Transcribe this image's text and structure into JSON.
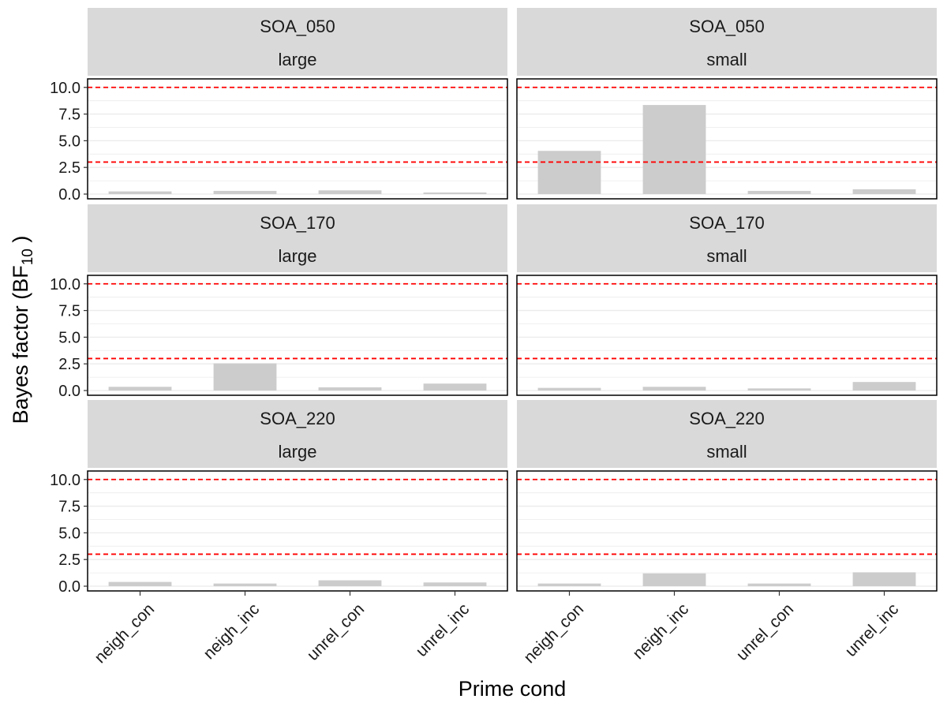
{
  "chart_data": {
    "type": "bar",
    "facet_rows": [
      "SOA_050",
      "SOA_170",
      "SOA_220"
    ],
    "facet_cols": [
      "large",
      "small"
    ],
    "categories": [
      "neigh_con",
      "neigh_inc",
      "unrel_con",
      "unrel_inc"
    ],
    "xlabel": "Prime cond",
    "ylabel_main": "Bayes factor (BF",
    "ylabel_sub": "10",
    "ylabel_end": " )",
    "ylim": [
      0,
      10.5
    ],
    "yticks": [
      "0.0",
      "2.5",
      "5.0",
      "7.5",
      "10.0"
    ],
    "ytick_values": [
      0,
      2.5,
      5,
      7.5,
      10
    ],
    "reference_lines": [
      3,
      10
    ],
    "colors": {
      "bar": "#cccccc",
      "reference": "#ff0000",
      "strip": "#d9d9d9",
      "grid": "#ebebeb"
    },
    "panels": [
      {
        "row": "SOA_050",
        "col": "large",
        "values": [
          0.25,
          0.3,
          0.35,
          0.15
        ]
      },
      {
        "row": "SOA_050",
        "col": "small",
        "values": [
          4.05,
          8.35,
          0.3,
          0.45
        ]
      },
      {
        "row": "SOA_170",
        "col": "large",
        "values": [
          0.35,
          2.55,
          0.3,
          0.65
        ]
      },
      {
        "row": "SOA_170",
        "col": "small",
        "values": [
          0.25,
          0.35,
          0.2,
          0.8
        ]
      },
      {
        "row": "SOA_220",
        "col": "large",
        "values": [
          0.4,
          0.25,
          0.55,
          0.35
        ]
      },
      {
        "row": "SOA_220",
        "col": "small",
        "values": [
          0.25,
          1.2,
          0.25,
          1.3
        ]
      }
    ]
  }
}
